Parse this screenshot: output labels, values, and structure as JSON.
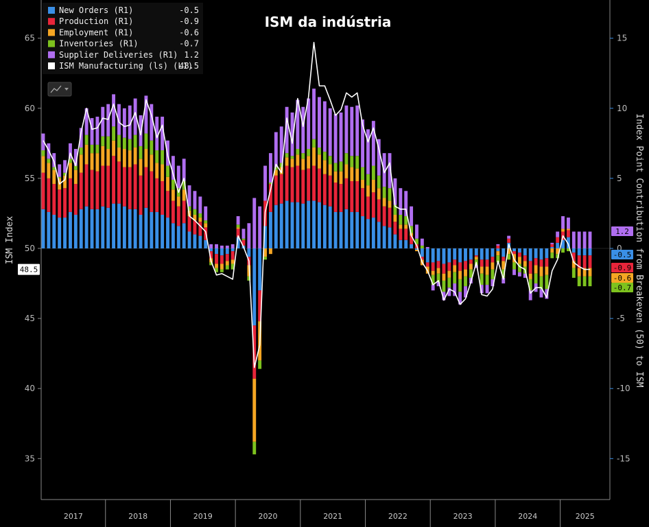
{
  "chart_data": {
    "type": "bar",
    "title": "ISM da indústria",
    "left_axis": {
      "label": "ISM Index",
      "ticks": [
        35,
        40,
        45,
        50,
        55,
        60,
        65
      ],
      "range": [
        32,
        67.5
      ]
    },
    "right_axis": {
      "label": "Index Point Contribution from Breakeven (50) to ISM",
      "ticks": [
        -15,
        -10,
        -5,
        0,
        5,
        10,
        15
      ],
      "range": [
        -18,
        17.5
      ]
    },
    "x_labels": [
      "2017",
      "2018",
      "2019",
      "2020",
      "2021",
      "2022",
      "2023",
      "2024",
      "2025"
    ],
    "legend": [
      {
        "name": "New Orders (R1)",
        "value": "-0.5",
        "color": "#3a8fe6"
      },
      {
        "name": "Production (R1)",
        "value": "-0.9",
        "color": "#e8253a"
      },
      {
        "name": "Employment (R1)",
        "value": "-0.6",
        "color": "#f5a623"
      },
      {
        "name": "Inventories (R1)",
        "value": "-0.7",
        "color": "#7dc21e"
      },
      {
        "name": "Supplier Deliveries (R1)",
        "value": "1.2",
        "color": "#b06ef0"
      },
      {
        "name": "ISM Manufacturing (ls) (L1)",
        "value": "48.5",
        "color": "#ffffff"
      }
    ],
    "last_value_tags": {
      "ism": "48.5",
      "series": [
        {
          "value": "1.2",
          "color": "#b06ef0"
        },
        {
          "value": "-0.5",
          "color": "#3a8fe6"
        },
        {
          "value": "-0.9",
          "color": "#e8253a"
        },
        {
          "value": "-0.6",
          "color": "#f5a623"
        },
        {
          "value": "-0.7",
          "color": "#7dc21e"
        }
      ]
    },
    "ism": [
      57.7,
      57.0,
      56.2,
      54.6,
      54.9,
      56.8,
      55.9,
      58.3,
      60.0,
      58.5,
      58.6,
      59.3,
      59.2,
      60.3,
      59.0,
      58.7,
      58.8,
      59.7,
      58.1,
      60.6,
      59.5,
      57.9,
      58.8,
      56.6,
      55.3,
      54.0,
      55.0,
      52.3,
      52.0,
      51.6,
      51.2,
      49.1,
      48.1,
      48.2,
      48.0,
      47.8,
      50.9,
      50.1,
      49.1,
      41.5,
      43.1,
      52.6,
      54.2,
      56.0,
      55.4,
      59.3,
      57.5,
      60.7,
      58.7,
      60.8,
      64.7,
      61.6,
      61.6,
      60.6,
      59.5,
      59.9,
      61.1,
      60.8,
      61.1,
      58.8,
      57.6,
      58.6,
      57.1,
      55.4,
      56.1,
      53.0,
      52.8,
      52.8,
      50.9,
      50.2,
      49.0,
      48.4,
      47.4,
      47.7,
      46.3,
      47.1,
      46.9,
      46.0,
      46.4,
      47.6,
      49.0,
      46.7,
      46.6,
      47.1,
      49.1,
      47.8,
      50.3,
      49.2,
      48.7,
      48.5,
      46.8,
      47.2,
      47.2,
      46.5,
      48.4,
      49.2,
      50.9,
      50.3,
      49.0,
      48.7,
      48.5,
      48.5
    ],
    "new_orders": [
      2.8,
      2.6,
      2.4,
      2.2,
      2.2,
      2.6,
      2.4,
      2.8,
      3.0,
      2.8,
      2.8,
      3.0,
      2.9,
      3.2,
      3.2,
      3.0,
      2.8,
      2.8,
      2.4,
      2.9,
      2.6,
      2.6,
      2.4,
      2.2,
      1.8,
      1.6,
      1.8,
      1.2,
      1.0,
      0.9,
      0.6,
      -0.2,
      -0.4,
      -0.5,
      -0.4,
      -0.2,
      0.8,
      0.2,
      -0.6,
      -5.5,
      -3.0,
      1.6,
      2.6,
      3.1,
      3.2,
      3.4,
      3.3,
      3.3,
      3.2,
      3.4,
      3.4,
      3.3,
      3.1,
      3.0,
      2.6,
      2.6,
      2.8,
      2.6,
      2.6,
      2.3,
      2.1,
      2.2,
      1.9,
      1.6,
      1.5,
      1.0,
      0.6,
      0.6,
      0.3,
      -0.1,
      -0.6,
      -1.0,
      -1.0,
      -0.9,
      -1.1,
      -1.0,
      -0.8,
      -1.0,
      -0.9,
      -0.8,
      -0.5,
      -0.8,
      -0.8,
      -0.6,
      -0.2,
      -0.6,
      0.4,
      -0.2,
      -0.3,
      -0.5,
      -0.9,
      -0.7,
      -0.8,
      -0.7,
      0.1,
      0.4,
      0.6,
      0.8,
      -0.3,
      -0.5,
      -0.5,
      -0.5
    ],
    "production": [
      2.6,
      2.4,
      2.2,
      2.0,
      2.1,
      2.4,
      2.2,
      2.6,
      3.0,
      2.8,
      2.7,
      2.9,
      3.0,
      3.4,
      3.0,
      2.8,
      3.0,
      3.2,
      2.8,
      2.9,
      2.9,
      2.4,
      2.4,
      1.9,
      1.6,
      1.4,
      1.6,
      1.1,
      1.0,
      1.0,
      0.9,
      -0.5,
      -0.7,
      -0.6,
      -0.5,
      -0.6,
      0.6,
      0.4,
      -0.6,
      -3.8,
      -2.2,
      1.8,
      2.0,
      2.1,
      2.1,
      2.5,
      2.5,
      2.6,
      2.4,
      2.3,
      2.5,
      2.4,
      2.2,
      2.2,
      2.1,
      2.0,
      2.2,
      2.2,
      2.2,
      2.0,
      1.6,
      1.8,
      1.6,
      1.4,
      1.4,
      0.9,
      0.8,
      0.8,
      0.6,
      0.3,
      -0.2,
      -0.3,
      -0.6,
      -0.5,
      -0.7,
      -0.6,
      -0.4,
      -0.6,
      -0.6,
      -0.3,
      -0.1,
      -0.5,
      -0.5,
      -0.4,
      0.2,
      -0.3,
      0.3,
      -0.2,
      -0.3,
      -0.4,
      -0.9,
      -0.5,
      -0.5,
      -0.6,
      0.2,
      0.4,
      0.6,
      0.5,
      -0.6,
      -0.9,
      -0.9,
      -0.9
    ],
    "employment": [
      1.2,
      1.1,
      1.0,
      0.8,
      0.9,
      1.1,
      1.0,
      1.3,
      1.4,
      1.2,
      1.3,
      1.4,
      1.2,
      1.1,
      1.0,
      1.3,
      1.2,
      1.2,
      1.2,
      1.3,
      1.2,
      1.1,
      1.2,
      1.0,
      0.8,
      0.7,
      0.8,
      0.4,
      0.4,
      0.3,
      0.3,
      -0.3,
      -0.3,
      -0.4,
      -0.3,
      -0.3,
      0.1,
      0.0,
      -0.8,
      -4.5,
      -2.8,
      -0.6,
      -0.4,
      0.4,
      0.5,
      0.6,
      0.6,
      0.8,
      0.8,
      0.9,
      1.3,
      1.0,
      1.0,
      0.8,
      0.8,
      0.9,
      1.0,
      1.0,
      0.9,
      0.6,
      0.8,
      0.9,
      0.8,
      0.6,
      0.5,
      0.5,
      0.3,
      0.3,
      0.2,
      -0.1,
      -0.4,
      -0.5,
      -0.3,
      -0.4,
      -0.5,
      -0.5,
      -0.5,
      -0.6,
      -0.5,
      -0.4,
      -0.2,
      -0.5,
      -0.6,
      -0.5,
      -0.3,
      -0.6,
      -0.4,
      -0.6,
      -0.5,
      -0.4,
      -0.4,
      -0.6,
      -0.7,
      -0.6,
      -0.3,
      -0.4,
      0.2,
      0.1,
      -0.5,
      -0.6,
      -0.6,
      -0.6
    ],
    "inventories": [
      0.4,
      0.3,
      0.2,
      0.1,
      0.2,
      0.3,
      0.3,
      0.5,
      0.7,
      0.6,
      0.6,
      0.7,
      0.9,
      1.0,
      0.9,
      0.8,
      0.8,
      0.9,
      0.9,
      1.1,
      1.0,
      0.9,
      1.0,
      0.8,
      0.7,
      0.6,
      0.6,
      0.3,
      0.4,
      0.3,
      0.2,
      -0.2,
      -0.3,
      -0.2,
      -0.3,
      -0.4,
      0.2,
      0.1,
      -0.3,
      -0.9,
      -0.6,
      -0.2,
      0.1,
      0.2,
      0.3,
      0.3,
      0.2,
      0.4,
      0.4,
      0.5,
      0.6,
      0.5,
      0.6,
      0.6,
      0.6,
      0.7,
      0.8,
      0.8,
      0.9,
      0.9,
      0.8,
      1.0,
      0.9,
      0.8,
      0.9,
      0.7,
      0.7,
      0.6,
      0.5,
      0.4,
      0.2,
      0.0,
      -0.7,
      -0.6,
      -0.8,
      -0.7,
      -0.8,
      -0.9,
      -0.7,
      -0.6,
      -0.4,
      -0.8,
      -0.7,
      -0.7,
      -0.5,
      -0.6,
      -0.4,
      -0.5,
      -0.6,
      -0.5,
      -0.8,
      -0.7,
      -0.9,
      -1.0,
      -0.4,
      -0.3,
      -0.3,
      -0.2,
      -0.7,
      -0.7,
      -0.7,
      -0.7
    ],
    "supplier_deliveries": [
      1.2,
      1.1,
      1.0,
      0.9,
      0.9,
      1.1,
      1.2,
      1.4,
      1.9,
      1.9,
      2.0,
      2.1,
      2.3,
      2.3,
      2.2,
      2.1,
      2.4,
      2.6,
      2.2,
      2.7,
      2.6,
      2.4,
      2.4,
      1.8,
      1.7,
      1.6,
      1.6,
      1.5,
      1.3,
      1.2,
      1.0,
      0.3,
      0.3,
      0.2,
      0.2,
      0.3,
      0.6,
      0.7,
      1.8,
      3.6,
      3.0,
      2.5,
      2.1,
      2.5,
      2.6,
      3.3,
      3.1,
      3.5,
      3.3,
      3.6,
      3.6,
      3.6,
      3.6,
      3.4,
      3.5,
      3.5,
      3.4,
      3.5,
      3.6,
      3.4,
      3.2,
      3.2,
      2.6,
      2.4,
      2.5,
      1.9,
      1.9,
      1.8,
      1.4,
      1.0,
      0.5,
      0.1,
      -0.4,
      -0.3,
      -0.6,
      -0.6,
      -0.9,
      -0.9,
      -0.8,
      -0.4,
      -0.2,
      -0.6,
      -0.6,
      -0.5,
      0.1,
      -0.4,
      0.2,
      -0.4,
      -0.3,
      -0.3,
      -0.7,
      -0.6,
      -0.6,
      -0.7,
      0.1,
      0.4,
      0.9,
      0.8,
      1.2,
      1.2,
      1.2,
      1.2
    ]
  }
}
